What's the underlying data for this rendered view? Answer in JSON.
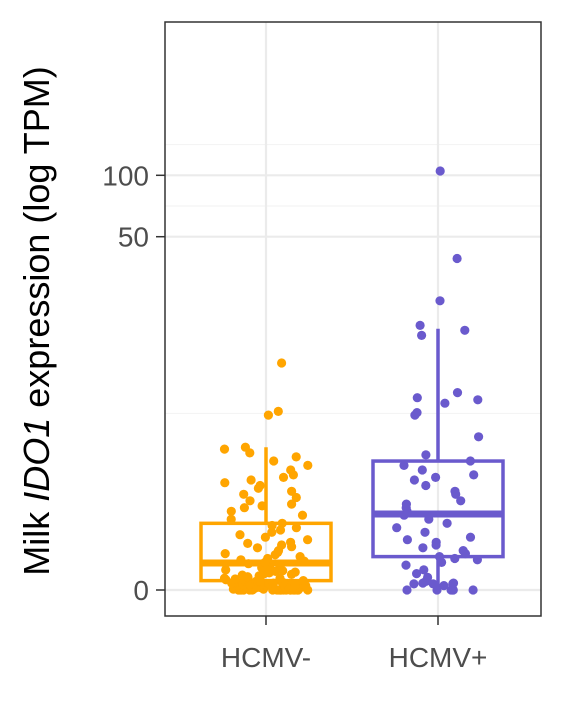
{
  "chart_data": {
    "type": "box",
    "y_scale": "log",
    "grid": true,
    "legend": "none",
    "ylabel": {
      "prefix": "Milk ",
      "gene": "IDO1",
      "suffix": " expression (log TPM)"
    },
    "yticks": [
      {
        "label": "0",
        "value": 0
      },
      {
        "label": "50",
        "value": 50
      },
      {
        "label": "100",
        "value": 100
      }
    ],
    "categories": [
      "HCMV-",
      "HCMV+"
    ],
    "colors": {
      "HCMV-": "#FFA500",
      "HCMV+": "#6A5ACD"
    },
    "boxes": [
      {
        "name": "HCMV-",
        "whisker_low": 0,
        "q1": 0.11,
        "median": 0.35,
        "q3": 1.1,
        "whisker_high": 3.9
      },
      {
        "name": "HCMV+",
        "whisker_low": 0,
        "q1": 0.45,
        "median": 1.33,
        "q3": 3.2,
        "whisker_high": 17.3
      }
    ],
    "points": {
      "HCMV-": [
        0,
        0,
        0,
        0,
        0,
        0,
        0,
        0,
        0,
        0,
        0,
        0,
        0,
        0,
        0,
        0,
        0,
        0,
        0,
        0,
        0.01,
        0.01,
        0.02,
        0.02,
        0.02,
        0.02,
        0.03,
        0.03,
        0.03,
        0.03,
        0.04,
        0.04,
        0.05,
        0.05,
        0.05,
        0.05,
        0.05,
        0.06,
        0.06,
        0.06,
        0.06,
        0.07,
        0.07,
        0.07,
        0.07,
        0.07,
        0.08,
        0.08,
        0.08,
        0.08,
        0.09,
        0.09,
        0.09,
        0.1,
        0.1,
        0.1,
        0.11,
        0.11,
        0.12,
        0.12,
        0.13,
        0.13,
        0.14,
        0.14,
        0.15,
        0.16,
        0.17,
        0.18,
        0.19,
        0.2,
        0.21,
        0.22,
        0.23,
        0.24,
        0.25,
        0.26,
        0.28,
        0.3,
        0.32,
        0.34,
        0.36,
        0.38,
        0.4,
        0.42,
        0.45,
        0.48,
        0.5,
        0.52,
        0.55,
        0.6,
        0.62,
        0.65,
        0.68,
        0.7,
        0.75,
        0.8,
        0.85,
        0.9,
        0.95,
        1.0,
        1.05,
        1.1,
        1.2,
        1.3,
        1.4,
        1.5,
        1.55,
        1.6,
        1.7,
        1.8,
        1.9,
        2.0,
        2.1,
        2.2,
        2.3,
        2.4,
        2.5,
        2.6,
        2.8,
        3.0,
        3.2,
        3.4,
        3.6,
        3.8,
        3.9,
        6.0,
        6.3,
        11.5
      ],
      "HCMV+": [
        0,
        0,
        0,
        0,
        0,
        0,
        0.05,
        0.07,
        0.07,
        0.07,
        0.08,
        0.08,
        0.1,
        0.15,
        0.2,
        0.25,
        0.32,
        0.36,
        0.4,
        0.42,
        0.45,
        0.5,
        0.55,
        0.6,
        0.65,
        0.7,
        0.75,
        0.8,
        0.9,
        1.0,
        1.1,
        1.2,
        1.3,
        1.4,
        1.5,
        1.6,
        1.7,
        1.9,
        2.0,
        2.2,
        2.4,
        2.5,
        2.6,
        2.8,
        3.0,
        3.2,
        3.5,
        4.5,
        6.0,
        6.2,
        7.0,
        7.3,
        7.5,
        8.0,
        16.0,
        17.0,
        18.0,
        24.0,
        39.0,
        105.0
      ]
    }
  }
}
